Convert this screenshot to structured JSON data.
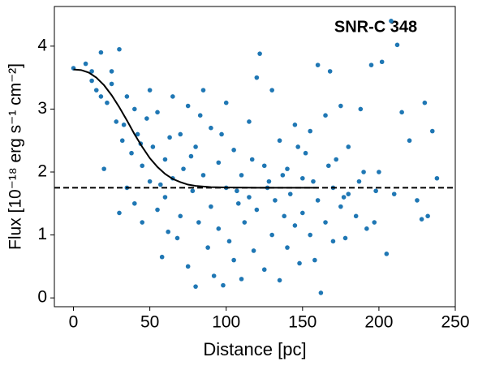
{
  "chart_data": {
    "type": "scatter",
    "title": "SNR-C 348",
    "xlabel": "Distance [pc]",
    "ylabel": "Flux [10⁻¹⁸ erg s⁻¹ cm⁻²]",
    "xlim": [
      -12.5,
      250
    ],
    "ylim": [
      -0.14,
      4.63
    ],
    "xticks": [
      0,
      50,
      100,
      150,
      200,
      250
    ],
    "yticks": [
      0,
      1,
      2,
      3,
      4
    ],
    "grid": false,
    "series": [
      {
        "type": "scatter",
        "color": "#1f77b4",
        "x": [
          0,
          8,
          12,
          15,
          18,
          20,
          22,
          25,
          28,
          30,
          30,
          32,
          35,
          35,
          38,
          40,
          40,
          42,
          45,
          45,
          48,
          50,
          50,
          52,
          55,
          55,
          58,
          60,
          60,
          62,
          65,
          65,
          68,
          70,
          70,
          72,
          75,
          75,
          78,
          80,
          80,
          82,
          85,
          85,
          88,
          90,
          90,
          92,
          95,
          95,
          98,
          100,
          100,
          102,
          105,
          105,
          108,
          110,
          110,
          112,
          115,
          115,
          118,
          120,
          120,
          122,
          125,
          125,
          128,
          130,
          130,
          132,
          135,
          135,
          138,
          140,
          140,
          142,
          145,
          145,
          148,
          150,
          150,
          152,
          155,
          155,
          158,
          160,
          160,
          162,
          165,
          165,
          168,
          170,
          170,
          172,
          175,
          175,
          178,
          180,
          180,
          185,
          188,
          190,
          192,
          195,
          198,
          200,
          202,
          205,
          208,
          210,
          212,
          215,
          220,
          225,
          228,
          230,
          232,
          235,
          238,
          12,
          18,
          25,
          33,
          44,
          57,
          63,
          77,
          83,
          97,
          107,
          117,
          127,
          137,
          147,
          157,
          167,
          177,
          187,
          197
        ],
        "values": [
          3.65,
          3.72,
          3.45,
          3.3,
          3.9,
          2.05,
          3.1,
          3.6,
          2.8,
          3.95,
          1.35,
          2.5,
          3.2,
          1.75,
          2.3,
          3.0,
          1.5,
          2.6,
          2.1,
          1.2,
          2.85,
          3.3,
          1.85,
          2.4,
          1.4,
          2.95,
          0.65,
          2.2,
          1.6,
          1.05,
          3.2,
          1.9,
          0.95,
          2.6,
          1.3,
          2.05,
          3.05,
          0.5,
          1.7,
          2.4,
          0.18,
          1.2,
          3.3,
          1.95,
          0.8,
          2.7,
          1.45,
          0.35,
          2.15,
          1.1,
          0.2,
          3.1,
          1.75,
          0.9,
          2.35,
          0.6,
          1.5,
          1.95,
          0.3,
          1.2,
          2.8,
          1.6,
          0.75,
          3.5,
          1.4,
          3.88,
          2.1,
          0.45,
          1.85,
          3.3,
          1.0,
          1.55,
          2.5,
          0.28,
          1.3,
          2.05,
          0.8,
          1.65,
          2.75,
          1.15,
          0.55,
          1.9,
          1.35,
          2.3,
          1.0,
          2.65,
          0.6,
          3.7,
          1.55,
          0.08,
          2.9,
          1.2,
          3.6,
          1.75,
          0.9,
          2.2,
          3.05,
          1.45,
          0.95,
          2.4,
          1.65,
          1.3,
          3.0,
          2.0,
          1.1,
          3.7,
          1.7,
          2.0,
          3.75,
          0.7,
          4.4,
          1.65,
          4.02,
          2.95,
          2.5,
          1.55,
          1.25,
          3.1,
          1.3,
          2.65,
          1.9,
          3.6,
          3.2,
          3.4,
          2.75,
          2.45,
          1.8,
          2.55,
          2.25,
          2.9,
          2.6,
          1.7,
          2.2,
          1.75,
          1.95,
          2.4,
          1.85,
          2.1,
          1.6,
          1.85,
          1.2
        ]
      },
      {
        "type": "line",
        "color": "#000000",
        "x": [
          0,
          5,
          10,
          15,
          20,
          25,
          30,
          35,
          40,
          45,
          50,
          55,
          60,
          65,
          70,
          75,
          80,
          90,
          100,
          120,
          140,
          160
        ],
        "values": [
          3.63,
          3.62,
          3.58,
          3.5,
          3.38,
          3.22,
          3.03,
          2.82,
          2.6,
          2.4,
          2.22,
          2.08,
          1.97,
          1.89,
          1.84,
          1.8,
          1.78,
          1.76,
          1.755,
          1.75,
          1.75,
          1.75
        ]
      }
    ],
    "hline": {
      "value": 1.75,
      "color": "#000000",
      "style": "dashed"
    }
  }
}
